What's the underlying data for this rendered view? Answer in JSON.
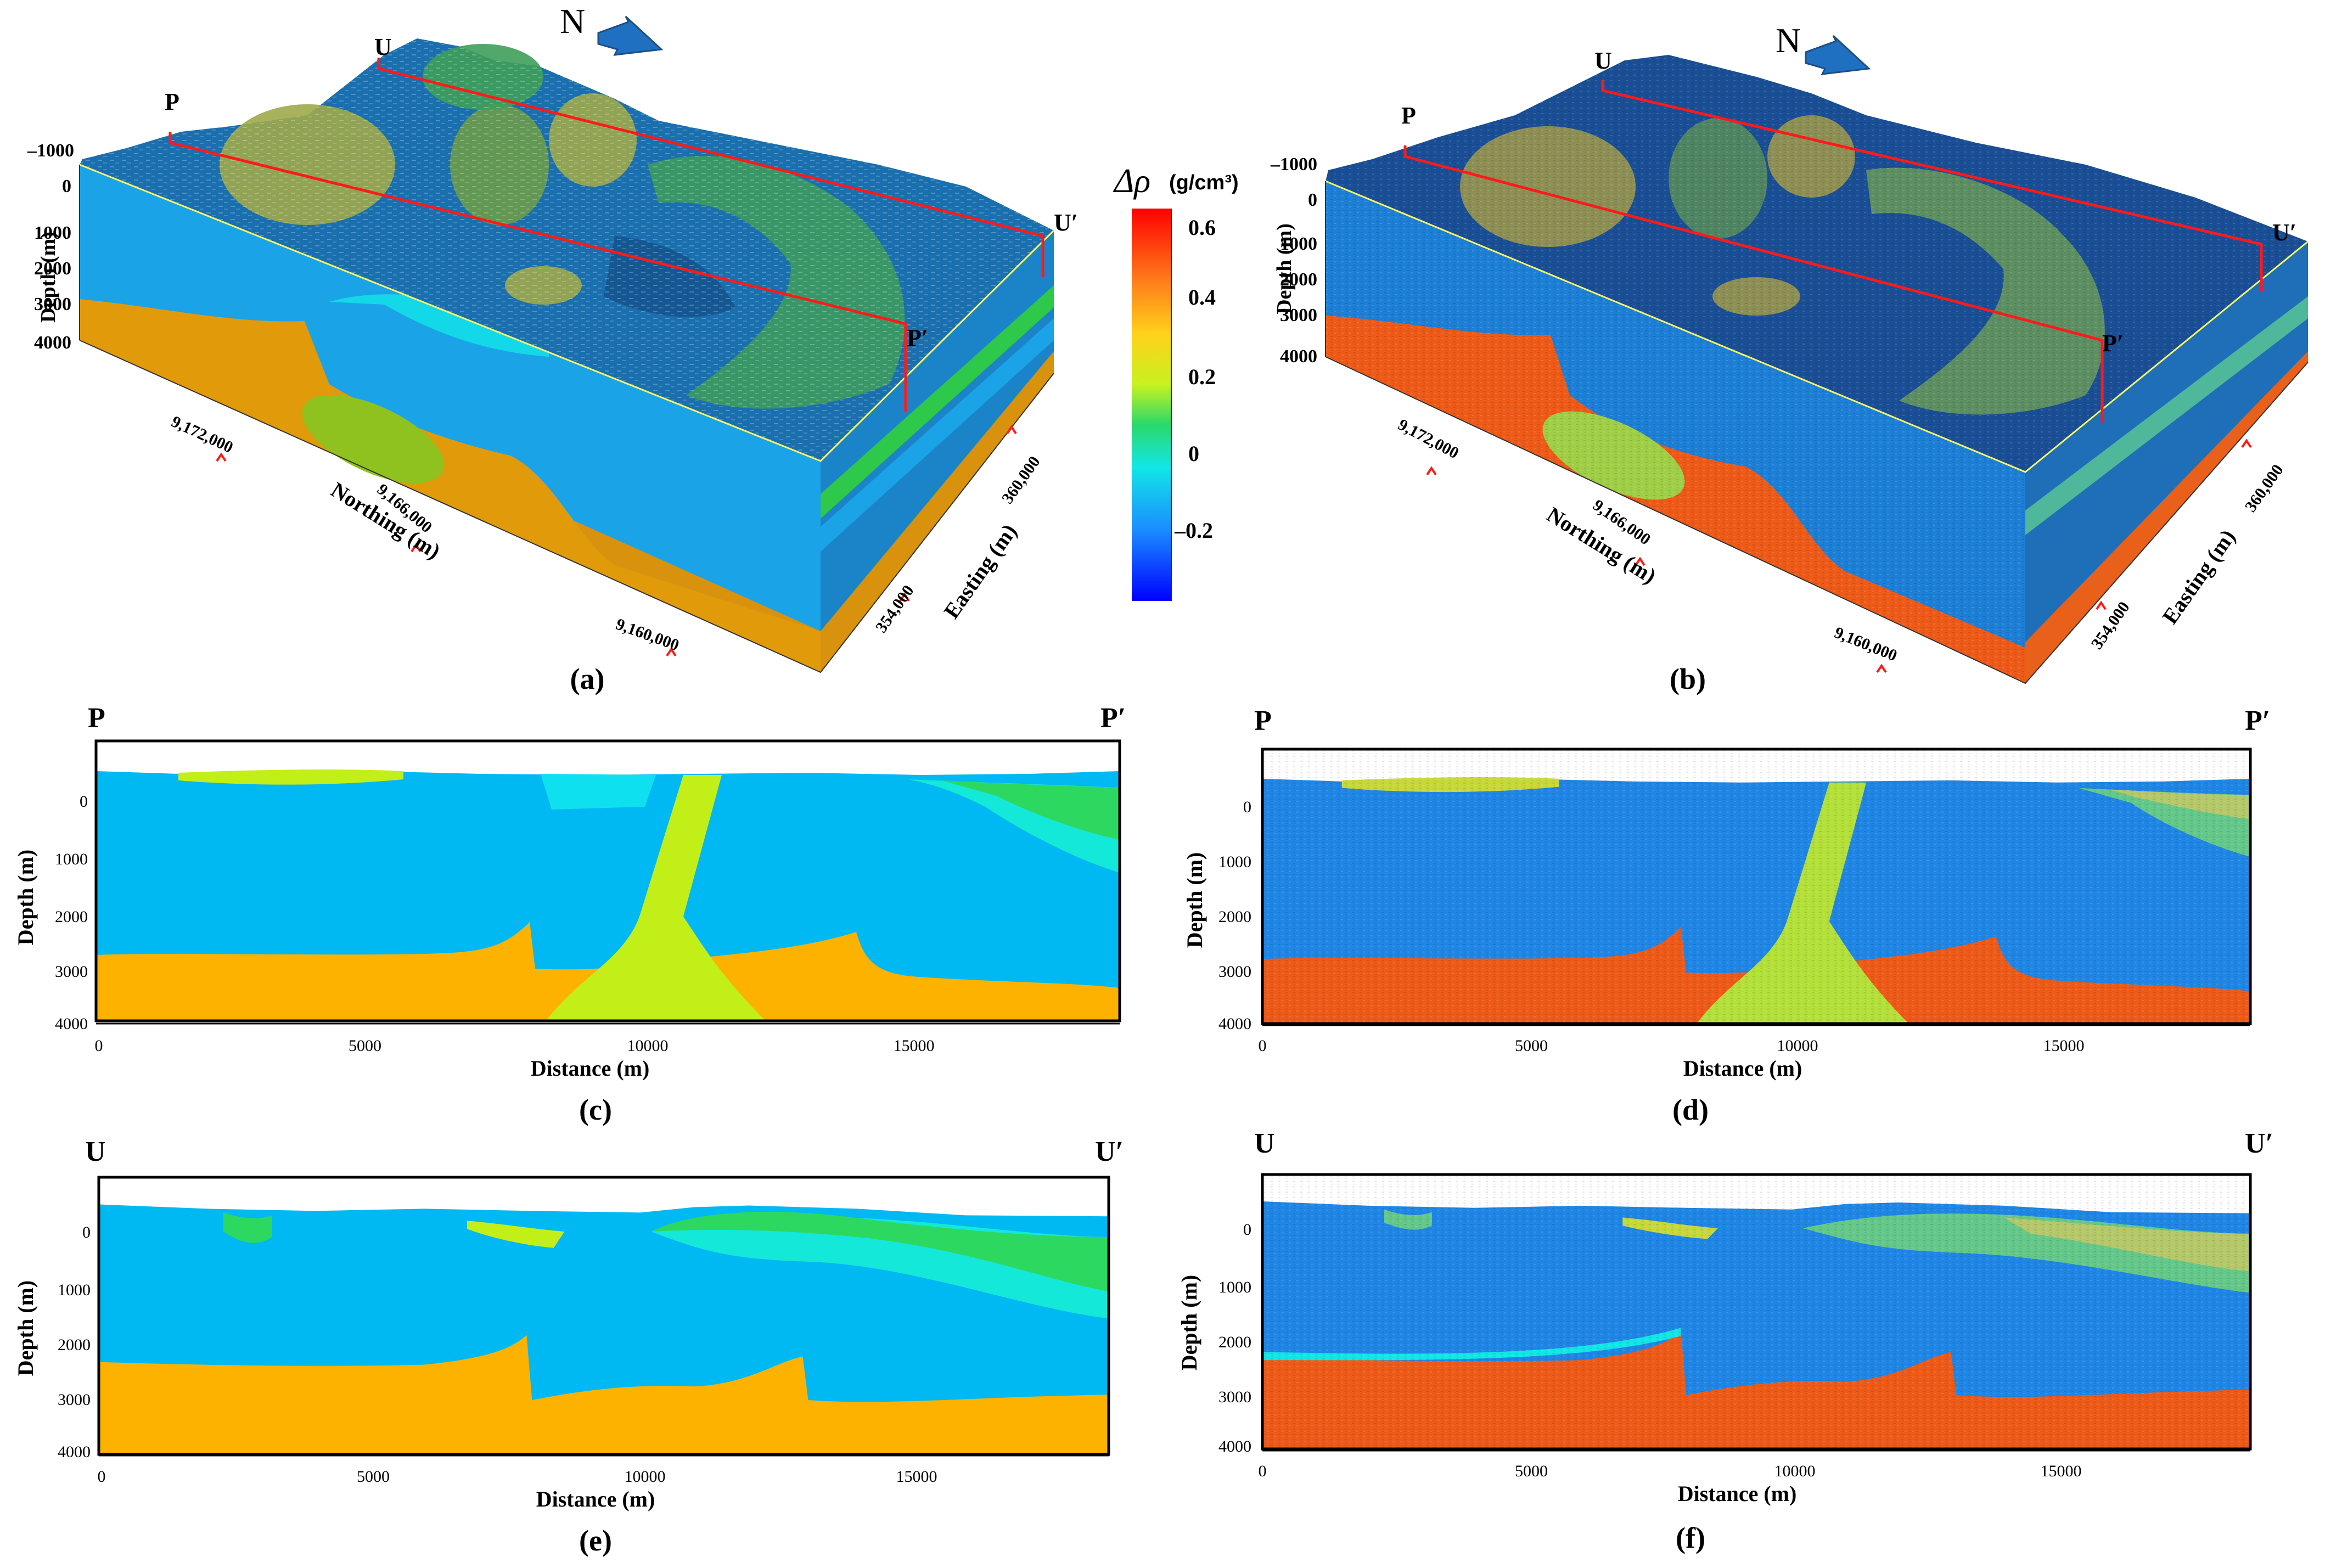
{
  "panel_a": {
    "north": "N",
    "markers": [
      "P",
      "U",
      "P′",
      "U′"
    ],
    "depth_label": "Depth (m)",
    "depth_ticks": [
      "–1000",
      "0",
      "1000",
      "2000",
      "3000",
      "4000"
    ],
    "northing_label": "Northing (m)",
    "northing_ticks": [
      "9,172,000",
      "9,166,000",
      "9,160,000"
    ],
    "easting_label": "Easting (m)",
    "easting_ticks": [
      "354,000",
      "360,000"
    ],
    "caption": "(a)"
  },
  "panel_b": {
    "north": "N",
    "markers": [
      "P",
      "U",
      "P′",
      "U′"
    ],
    "depth_label": "Depth (m)",
    "depth_ticks": [
      "–1000",
      "0",
      "1000",
      "2000",
      "3000",
      "4000"
    ],
    "northing_label": "Northing (m)",
    "northing_ticks": [
      "9,172,000",
      "9,166,000",
      "9,160,000"
    ],
    "easting_label": "Easting (m)",
    "easting_ticks": [
      "354,000",
      "360,000"
    ],
    "caption": "(b)"
  },
  "colorbar": {
    "symbol": "Δρ",
    "unit": "(g/cm³)",
    "ticks": [
      "0.6",
      "0.4",
      "0.2",
      "0",
      "–0.2"
    ],
    "colors": [
      "#ff0000",
      "#ff7a1a",
      "#ffd21a",
      "#c6f21f",
      "#2ad96a",
      "#12e6e6",
      "#1a8cff",
      "#0000ff"
    ]
  },
  "sections": {
    "c": {
      "left": "P",
      "right": "P′",
      "caption": "(c)"
    },
    "d": {
      "left": "P",
      "right": "P′",
      "caption": "(d)"
    },
    "e": {
      "left": "U",
      "right": "U′",
      "caption": "(e)"
    },
    "f": {
      "left": "U",
      "right": "U′",
      "caption": "(f)"
    },
    "ylabel": "Depth (m)",
    "xlabel": "Distance (m)",
    "yticks": [
      "0",
      "1000",
      "2000",
      "3000",
      "4000"
    ],
    "xticks": [
      "0",
      "5000",
      "10000",
      "15000"
    ]
  }
}
